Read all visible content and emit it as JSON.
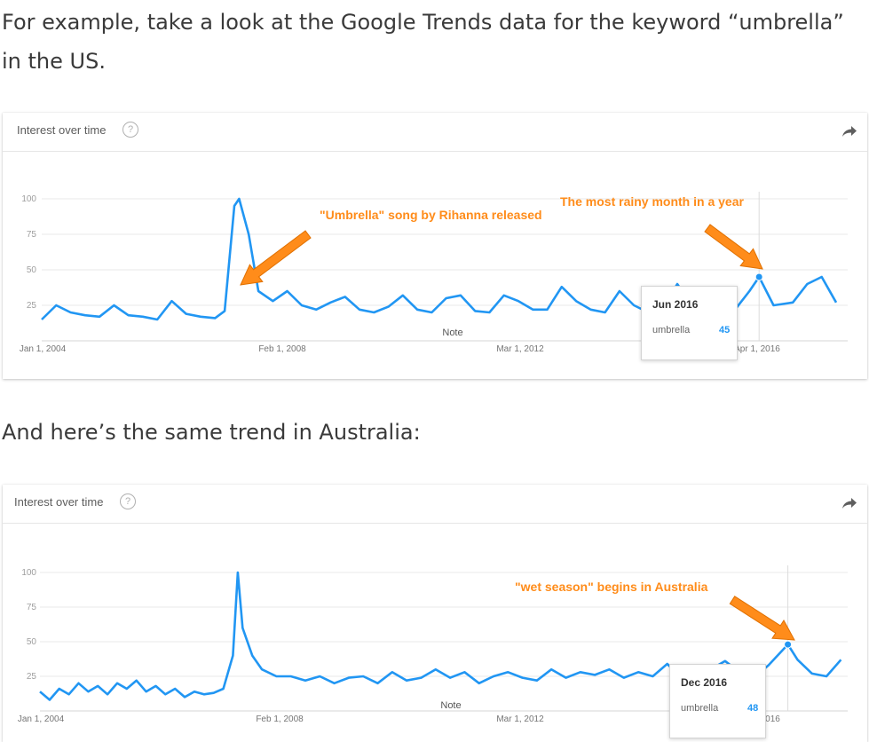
{
  "intro_text": "For example, take a look at the Google Trends data for the keyword “umbrella” in the US.",
  "middle_text": "And here’s the same trend in Australia:",
  "chart_data": [
    {
      "type": "line",
      "title": "Interest over time",
      "region": "US",
      "series": [
        {
          "name": "umbrella",
          "color": "#2196f3",
          "x": [
            "2004-01",
            "2004-04",
            "2004-07",
            "2004-10",
            "2005-01",
            "2005-04",
            "2005-07",
            "2005-10",
            "2006-01",
            "2006-04",
            "2006-07",
            "2006-10",
            "2007-01",
            "2007-03",
            "2007-05",
            "2007-06",
            "2007-08",
            "2007-10",
            "2008-01",
            "2008-04",
            "2008-07",
            "2008-10",
            "2009-01",
            "2009-04",
            "2009-07",
            "2009-10",
            "2010-01",
            "2010-04",
            "2010-07",
            "2010-10",
            "2011-01",
            "2011-04",
            "2011-07",
            "2011-10",
            "2012-01",
            "2012-04",
            "2012-07",
            "2012-10",
            "2013-01",
            "2013-04",
            "2013-07",
            "2013-10",
            "2014-01",
            "2014-04",
            "2014-07",
            "2014-10",
            "2015-01",
            "2015-04",
            "2015-07",
            "2015-10",
            "2016-01",
            "2016-04",
            "2016-06",
            "2016-09",
            "2017-01",
            "2017-04",
            "2017-07",
            "2017-10"
          ],
          "values": [
            15,
            25,
            20,
            18,
            17,
            25,
            18,
            17,
            15,
            28,
            19,
            17,
            16,
            21,
            95,
            100,
            75,
            35,
            28,
            35,
            25,
            22,
            27,
            31,
            22,
            20,
            24,
            32,
            22,
            20,
            30,
            32,
            21,
            20,
            32,
            28,
            22,
            22,
            38,
            28,
            22,
            20,
            35,
            25,
            20,
            23,
            40,
            25,
            28,
            37,
            22,
            35,
            45,
            25,
            27,
            40,
            45,
            27
          ]
        }
      ],
      "y_ticks": [
        "100",
        "75",
        "50",
        "25"
      ],
      "x_ticks": [
        "Jan 1, 2004",
        "Feb 1, 2008",
        "Mar 1, 2012",
        "Apr 1, 2016"
      ],
      "ylim": [
        0,
        100
      ],
      "note_label": "Note",
      "annotations": [
        "\"Umbrella\" song by Rihanna released",
        "The most rainy month in a year"
      ],
      "tooltip": {
        "date": "Jun 2016",
        "term": "umbrella",
        "value": "45"
      },
      "highlight_point": "2016-06"
    },
    {
      "type": "line",
      "title": "Interest over time",
      "region": "Australia",
      "series": [
        {
          "name": "umbrella",
          "color": "#2196f3",
          "x": [
            "2004-01",
            "2004-03",
            "2004-05",
            "2004-07",
            "2004-09",
            "2004-11",
            "2005-01",
            "2005-03",
            "2005-05",
            "2005-07",
            "2005-09",
            "2005-11",
            "2006-01",
            "2006-03",
            "2006-05",
            "2006-07",
            "2006-09",
            "2006-11",
            "2007-01",
            "2007-03",
            "2007-05",
            "2007-06",
            "2007-07",
            "2007-09",
            "2007-11",
            "2008-02",
            "2008-05",
            "2008-08",
            "2008-11",
            "2009-02",
            "2009-05",
            "2009-08",
            "2009-11",
            "2010-02",
            "2010-05",
            "2010-08",
            "2010-11",
            "2011-02",
            "2011-05",
            "2011-08",
            "2011-11",
            "2012-02",
            "2012-05",
            "2012-08",
            "2012-11",
            "2013-02",
            "2013-05",
            "2013-08",
            "2013-11",
            "2014-02",
            "2014-05",
            "2014-08",
            "2014-11",
            "2015-02",
            "2015-05",
            "2015-08",
            "2015-11",
            "2016-02",
            "2016-05",
            "2016-08",
            "2016-12",
            "2017-02",
            "2017-05",
            "2017-08",
            "2017-11"
          ],
          "values": [
            14,
            8,
            16,
            12,
            20,
            14,
            18,
            12,
            20,
            16,
            22,
            14,
            18,
            12,
            16,
            10,
            14,
            12,
            13,
            16,
            40,
            100,
            60,
            40,
            30,
            25,
            25,
            22,
            25,
            20,
            24,
            25,
            20,
            28,
            22,
            24,
            30,
            24,
            28,
            20,
            25,
            28,
            24,
            22,
            30,
            24,
            28,
            26,
            30,
            24,
            28,
            25,
            34,
            24,
            26,
            30,
            36,
            28,
            24,
            33,
            48,
            37,
            27,
            25,
            37
          ]
        }
      ],
      "y_ticks": [
        "100",
        "75",
        "50",
        "25"
      ],
      "x_ticks": [
        "Jan 1, 2004",
        "Feb 1, 2008",
        "Mar 1, 2012",
        "Apr 1, 2016"
      ],
      "ylim": [
        0,
        100
      ],
      "note_label": "Note",
      "annotations": [
        "\"wet season\" begins in Australia"
      ],
      "tooltip": {
        "date": "Dec 2016",
        "term": "umbrella",
        "value": "48"
      },
      "highlight_point": "2016-12"
    }
  ]
}
